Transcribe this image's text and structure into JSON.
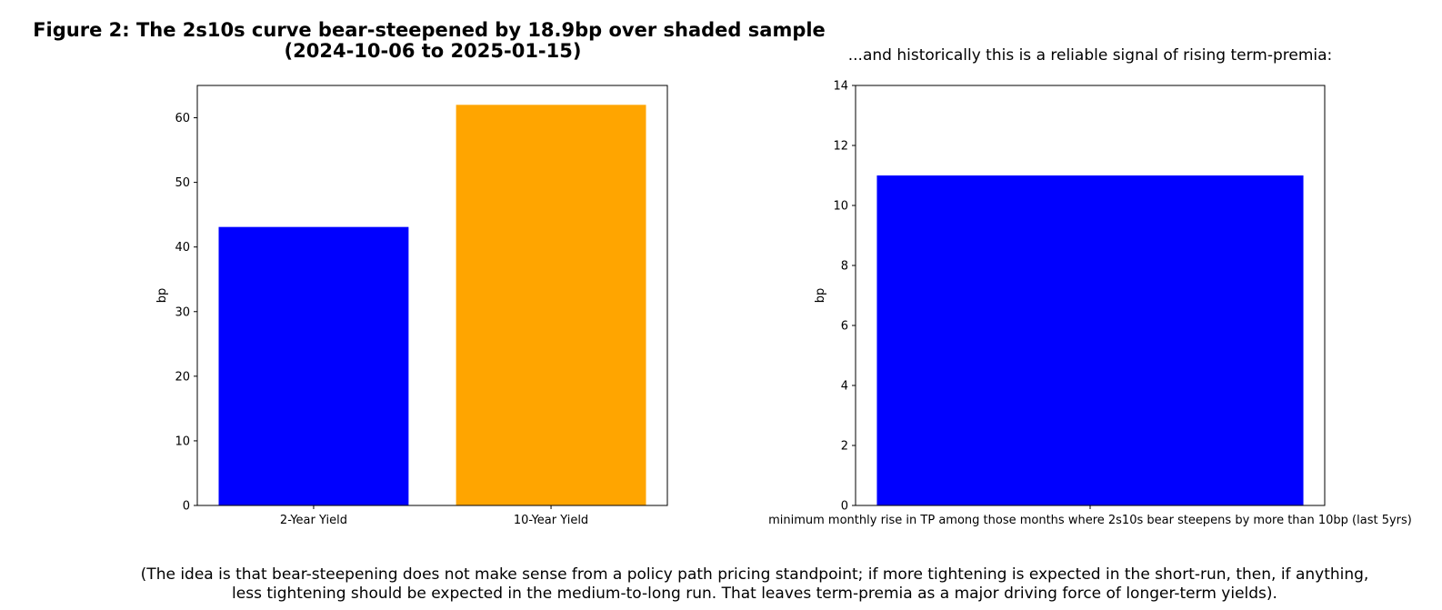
{
  "figure": {
    "title_line1": "Figure 2: The 2s10s curve bear-steepened by 18.9bp over shaded sample",
    "title_line2": "(2024-10-06 to 2025-01-15)",
    "caption_line1": "(The idea is that bear-steepening does not make sense from a policy path pricing standpoint; if more tightening is expected in the short-run, then, if anything,",
    "caption_line2": "less tightening should be expected in the medium-to-long run. That leaves term-premia as a major driving force of longer-term yields)."
  },
  "chart_data": [
    {
      "type": "bar",
      "title": "",
      "categories": [
        "2-Year Yield",
        "10-Year Yield"
      ],
      "values": [
        43.1,
        62.0
      ],
      "colors": [
        "#0000ff",
        "#ffa500"
      ],
      "xlabel": "",
      "ylabel": "bp",
      "ylim": [
        0,
        65
      ],
      "yticks": [
        0,
        10,
        20,
        30,
        40,
        50,
        60
      ],
      "grid": false
    },
    {
      "type": "bar",
      "title": "...and historically this is a reliable signal of rising term-premia:",
      "categories": [
        "minimum monthly rise in TP among those months where 2s10s bear steepens by more than 10bp (last 5yrs)"
      ],
      "values": [
        11.0
      ],
      "colors": [
        "#0000ff"
      ],
      "xlabel": "",
      "ylabel": "bp",
      "ylim": [
        0,
        14
      ],
      "yticks": [
        0,
        2,
        4,
        6,
        8,
        10,
        12,
        14
      ],
      "grid": false
    }
  ]
}
